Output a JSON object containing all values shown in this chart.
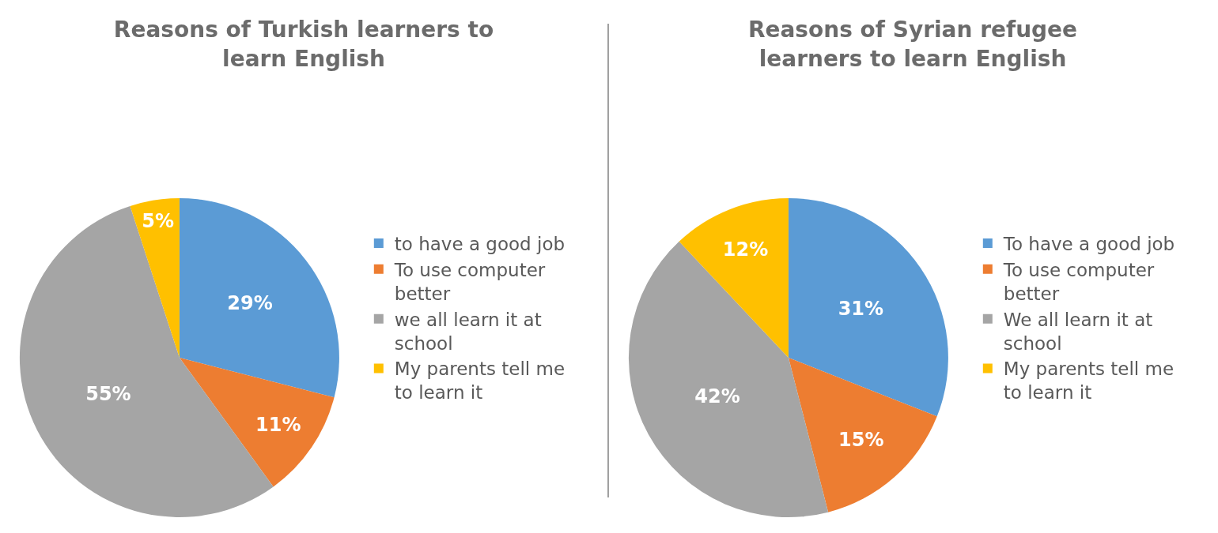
{
  "chart_data": [
    {
      "type": "pie",
      "title": "Reasons of Turkish learners to learn English",
      "categories": [
        "to have a good job",
        "To use computer better",
        "we all learn it at school",
        "My parents tell me to learn it"
      ],
      "values": [
        29,
        11,
        55,
        5
      ],
      "value_labels": [
        "29%",
        "11%",
        "55%",
        "5%"
      ],
      "colors": [
        "#5b9bd5",
        "#ed7d31",
        "#a5a5a5",
        "#ffc000"
      ],
      "legend": "right"
    },
    {
      "type": "pie",
      "title": "Reasons of Syrian refugee learners to learn English",
      "categories": [
        "To have a good job",
        "To use computer better",
        "We all learn it at school",
        "My parents tell me to learn it"
      ],
      "values": [
        31,
        15,
        42,
        12
      ],
      "value_labels": [
        "31%",
        "15%",
        "42%",
        "12%"
      ],
      "colors": [
        "#5b9bd5",
        "#ed7d31",
        "#a5a5a5",
        "#ffc000"
      ],
      "legend": "right"
    }
  ]
}
